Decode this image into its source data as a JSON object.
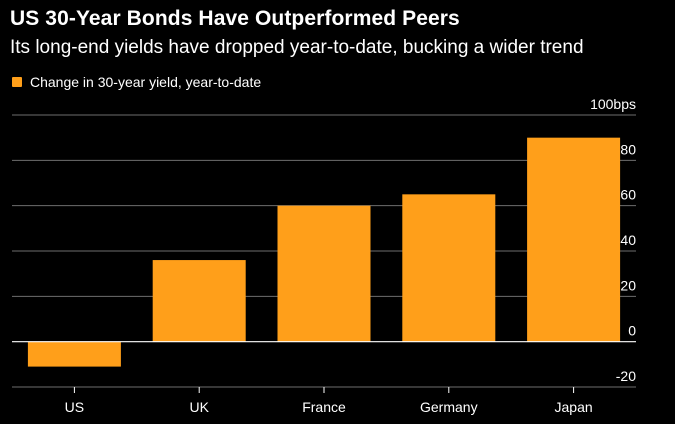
{
  "chart_data": {
    "type": "bar",
    "title": "US 30-Year Bonds Have Outperformed Peers",
    "subtitle": "Its long-end yields have dropped year-to-date, bucking a wider trend",
    "legend": "Change in 30-year yield, year-to-date",
    "categories": [
      "US",
      "UK",
      "France",
      "Germany",
      "Japan"
    ],
    "values": [
      -11,
      36,
      60,
      65,
      90
    ],
    "ylim": [
      -20,
      100
    ],
    "yticks": [
      -20,
      0,
      20,
      40,
      60,
      80,
      100
    ],
    "ytick_labels": [
      "-20",
      "0",
      "20",
      "40",
      "60",
      "80",
      "100bps"
    ],
    "ylabel": "bps",
    "xlabel": "",
    "grid": true,
    "legend_position": "top-left",
    "bar_color": "#ff9f1a",
    "grid_color": "#6e6e6e",
    "zero_line_color": "#ffffff"
  }
}
